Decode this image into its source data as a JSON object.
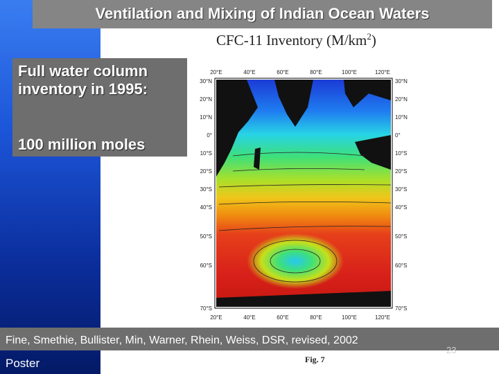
{
  "slide": {
    "title": "Ventilation and Mixing of Indian Ocean Waters",
    "figure_title": "CFC-11 Inventory (M/km",
    "figure_title_sup": "2",
    "figure_title_end": ")",
    "callout_line1": "Full water column",
    "callout_line2": "inventory in 1995:",
    "callout_line3": "100 million moles",
    "caption": "Fine, Smethie, Bullister, Min, Warner, Rhein, Weiss, DSR, revised, 2002",
    "slide_number": "23",
    "footer_label": "Poster",
    "fig_label": "Fig. 7"
  },
  "map": {
    "top_lon_labels": [
      "20°E",
      "40°E",
      "60°E",
      "80°E",
      "100°E",
      "120°E"
    ],
    "bottom_lon_labels": [
      "20°E",
      "40°E",
      "60°E",
      "80°E",
      "100°E",
      "120°E"
    ],
    "left_lat_labels": [
      "30°N",
      "20°N",
      "10°N",
      "0°",
      "10°S",
      "20°S",
      "30°S",
      "40°S",
      "50°S",
      "60°S",
      "70°S"
    ],
    "right_lat_labels": [
      "30°N",
      "20°N",
      "10°N",
      "0°",
      "10°S",
      "20°S",
      "30°S",
      "40°S",
      "50°S",
      "60°S",
      "70°S"
    ]
  },
  "colors": {
    "title_bar": "#858585",
    "callout_bg": "#6e6e6e",
    "caption_bg": "#6e6e6e",
    "left_bar_top": "#3a7df0",
    "left_bar_bottom": "#041a66"
  }
}
